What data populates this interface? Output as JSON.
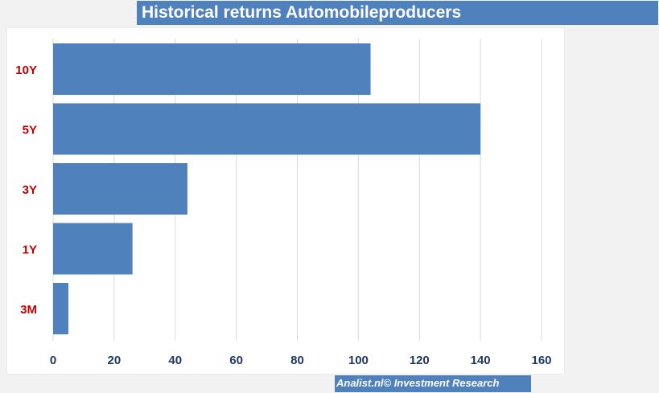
{
  "title": "Historical returns Automobileproducers",
  "footer": "Analist.nl© Investment Research",
  "colors": {
    "bar": "#4f81bd",
    "category_label": "#c00000",
    "tick_label": "#1f3864",
    "gridline": "#d9d9d9"
  },
  "chart_data": {
    "type": "bar",
    "orientation": "horizontal",
    "categories": [
      "10Y",
      "5Y",
      "3Y",
      "1Y",
      "3M"
    ],
    "values": [
      104,
      140,
      44,
      26,
      5
    ],
    "xlim": [
      0,
      160
    ],
    "xticks": [
      0,
      20,
      40,
      60,
      80,
      100,
      120,
      140,
      160
    ],
    "grid": true,
    "legend": "none"
  }
}
